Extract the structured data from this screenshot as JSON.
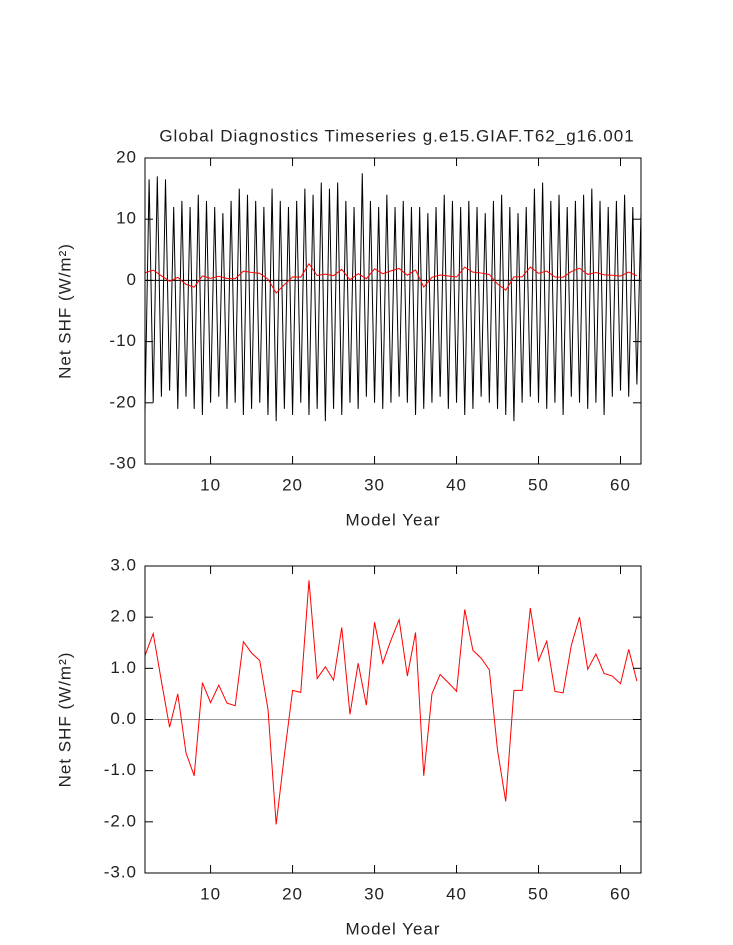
{
  "chart_data": [
    {
      "type": "line",
      "title": "Global Diagnostics Timeseries g.e15.GIAF.T62_g16.001",
      "xlabel": "Model Year",
      "ylabel": "Net SHF (W/m²)",
      "xlim": [
        2,
        62.5
      ],
      "xticks": [
        10,
        20,
        30,
        40,
        50,
        60
      ],
      "ylim": [
        -30,
        20
      ],
      "yticks": [
        -30,
        -20,
        -10,
        0,
        10,
        20
      ],
      "zero_line_color": "#000000",
      "series": [
        {
          "color": "#000000",
          "x": [
            2,
            2.5,
            3,
            3.5,
            4,
            4.5,
            5,
            5.5,
            6,
            6.5,
            7,
            7.5,
            8,
            8.5,
            9,
            9.5,
            10,
            10.5,
            11,
            11.5,
            12,
            12.5,
            13,
            13.5,
            14,
            14.5,
            15,
            15.5,
            16,
            16.5,
            17,
            17.5,
            18,
            18.5,
            19,
            19.5,
            20,
            20.5,
            21,
            21.5,
            22,
            22.5,
            23,
            23.5,
            24,
            24.5,
            25,
            25.5,
            26,
            26.5,
            27,
            27.5,
            28,
            28.5,
            29,
            29.5,
            30,
            30.5,
            31,
            31.5,
            32,
            32.5,
            33,
            33.5,
            34,
            34.5,
            35,
            35.5,
            36,
            36.5,
            37,
            37.5,
            38,
            38.5,
            39,
            39.5,
            40,
            40.5,
            41,
            41.5,
            42,
            42.5,
            43,
            43.5,
            44,
            44.5,
            45,
            45.5,
            46,
            46.5,
            47,
            47.5,
            48,
            48.5,
            49,
            49.5,
            50,
            50.5,
            51,
            51.5,
            52,
            52.5,
            53,
            53.5,
            54,
            54.5,
            55,
            55.5,
            56,
            56.5,
            57,
            57.5,
            58,
            58.5,
            59,
            59.5,
            60,
            60.5,
            61,
            61.5,
            62,
            62.5
          ],
          "values": [
            -21.5,
            16.5,
            -20,
            17,
            -19,
            16.5,
            -18,
            12,
            -21,
            13,
            -19,
            12,
            -21,
            14,
            -22,
            13,
            -20,
            12,
            -19,
            11,
            -21,
            13,
            -20,
            15,
            -22,
            14,
            -21,
            13,
            -20,
            12,
            -22,
            15,
            -23,
            13,
            -21,
            12,
            -22,
            13,
            -20,
            15,
            -22,
            14,
            -21,
            16,
            -23,
            15,
            -21,
            16,
            -22,
            13,
            -20,
            12,
            -21,
            17.5,
            -19,
            13,
            -20,
            12,
            -21,
            14,
            -20,
            12,
            -19,
            13,
            -20,
            12,
            -22,
            12,
            -21,
            11,
            -20,
            12,
            -19,
            14,
            -21,
            13,
            -20,
            12,
            -22,
            13,
            -21,
            12,
            -19,
            11,
            -20,
            13,
            -21,
            14,
            -22,
            12,
            -23,
            11,
            -20,
            12,
            -19,
            15,
            -20,
            16,
            -21,
            13,
            -20,
            14,
            -22,
            12,
            -19,
            13,
            -20,
            14,
            -21,
            15,
            -20,
            13,
            -22,
            12,
            -19,
            13,
            -18,
            14,
            -19,
            12,
            -17,
            11
          ]
        },
        {
          "color": "#ff0000",
          "x": [
            2,
            3,
            4,
            5,
            6,
            7,
            8,
            9,
            10,
            11,
            12,
            13,
            14,
            15,
            16,
            17,
            18,
            19,
            20,
            21,
            22,
            23,
            24,
            25,
            26,
            27,
            28,
            29,
            30,
            31,
            32,
            33,
            34,
            35,
            36,
            37,
            38,
            39,
            40,
            41,
            42,
            43,
            44,
            45,
            46,
            47,
            48,
            49,
            50,
            51,
            52,
            53,
            54,
            55,
            56,
            57,
            58,
            59,
            60,
            61,
            62
          ],
          "values": [
            1.25,
            1.68,
            0.75,
            -0.15,
            0.5,
            -0.65,
            -1.1,
            0.72,
            0.33,
            0.67,
            0.32,
            0.27,
            1.52,
            1.3,
            1.15,
            0.2,
            -2.05,
            -0.7,
            0.57,
            0.53,
            2.72,
            0.8,
            1.03,
            0.77,
            1.8,
            0.1,
            1.1,
            0.28,
            1.9,
            1.1,
            1.55,
            1.95,
            0.85,
            1.7,
            -1.1,
            0.5,
            0.88,
            0.72,
            0.55,
            2.15,
            1.35,
            1.2,
            0.97,
            -0.6,
            -1.6,
            0.57,
            0.57,
            2.18,
            1.15,
            1.53,
            0.55,
            0.52,
            1.45,
            2.0,
            0.98,
            1.28,
            0.9,
            0.85,
            0.7,
            1.37,
            0.75
          ]
        }
      ]
    },
    {
      "type": "line",
      "xlabel": "Model Year",
      "ylabel": "Net SHF (W/m²)",
      "xlim": [
        2,
        62.5
      ],
      "xticks": [
        10,
        20,
        30,
        40,
        50,
        60
      ],
      "ylim": [
        -3,
        3
      ],
      "yticks": [
        {
          "value": -3,
          "label": "-3.0"
        },
        {
          "value": -2,
          "label": "-2.0"
        },
        {
          "value": -1,
          "label": "-1.0"
        },
        {
          "value": 0,
          "label": "0.0"
        },
        {
          "value": 1,
          "label": "1.0"
        },
        {
          "value": 2,
          "label": "2.0"
        },
        {
          "value": 3,
          "label": "3.0"
        }
      ],
      "zero_line_color": "#999999",
      "series": [
        {
          "color": "#ff0000",
          "x": [
            2,
            3,
            4,
            5,
            6,
            7,
            8,
            9,
            10,
            11,
            12,
            13,
            14,
            15,
            16,
            17,
            18,
            19,
            20,
            21,
            22,
            23,
            24,
            25,
            26,
            27,
            28,
            29,
            30,
            31,
            32,
            33,
            34,
            35,
            36,
            37,
            38,
            39,
            40,
            41,
            42,
            43,
            44,
            45,
            46,
            47,
            48,
            49,
            50,
            51,
            52,
            53,
            54,
            55,
            56,
            57,
            58,
            59,
            60,
            61,
            62
          ],
          "values": [
            1.25,
            1.68,
            0.75,
            -0.15,
            0.5,
            -0.65,
            -1.1,
            0.72,
            0.33,
            0.67,
            0.32,
            0.27,
            1.52,
            1.3,
            1.15,
            0.2,
            -2.05,
            -0.7,
            0.57,
            0.53,
            2.72,
            0.8,
            1.03,
            0.77,
            1.8,
            0.1,
            1.1,
            0.28,
            1.9,
            1.1,
            1.55,
            1.95,
            0.85,
            1.7,
            -1.1,
            0.5,
            0.88,
            0.72,
            0.55,
            2.15,
            1.35,
            1.2,
            0.97,
            -0.6,
            -1.6,
            0.57,
            0.57,
            2.18,
            1.15,
            1.53,
            0.55,
            0.52,
            1.45,
            2.0,
            0.98,
            1.28,
            0.9,
            0.85,
            0.7,
            1.37,
            0.75
          ]
        }
      ]
    }
  ]
}
